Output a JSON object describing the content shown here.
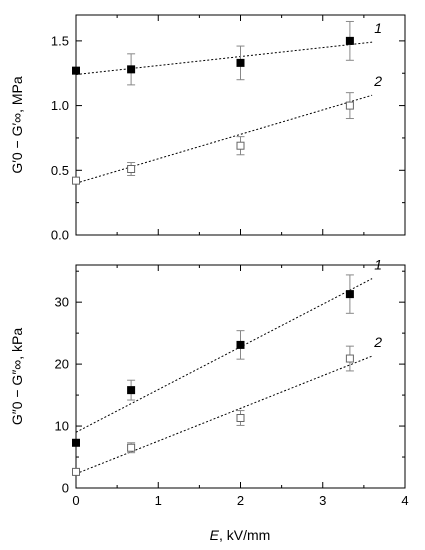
{
  "chart_data": [
    {
      "type": "scatter",
      "panel": "top",
      "xlim": [
        0,
        4
      ],
      "ylim": [
        0,
        1.7
      ],
      "xticks": [
        "0",
        "1",
        "2",
        "3",
        "4"
      ],
      "yticks": [
        "0.0",
        "0.5",
        "1.0",
        "1.5"
      ],
      "ytick_values": [
        0,
        0.5,
        1.0,
        1.5
      ],
      "ylabel": "G′0 − G′∞, MPa",
      "series": [
        {
          "name": "1",
          "marker": "filled-square",
          "points": [
            {
              "x": 0,
              "y": 1.27,
              "err": 0
            },
            {
              "x": 0.67,
              "y": 1.28,
              "err": 0.12
            },
            {
              "x": 2.0,
              "y": 1.33,
              "err": 0.13
            },
            {
              "x": 3.33,
              "y": 1.5,
              "err": 0.15
            }
          ],
          "fit": {
            "x": [
              0,
              3.6
            ],
            "y": [
              1.24,
              1.49
            ]
          }
        },
        {
          "name": "2",
          "marker": "open-square",
          "points": [
            {
              "x": 0,
              "y": 0.42,
              "err": 0
            },
            {
              "x": 0.67,
              "y": 0.51,
              "err": 0.05
            },
            {
              "x": 2.0,
              "y": 0.69,
              "err": 0.07
            },
            {
              "x": 3.33,
              "y": 1.0,
              "err": 0.1
            }
          ],
          "fit": {
            "x": [
              0,
              3.6
            ],
            "y": [
              0.4,
              1.08
            ]
          }
        }
      ]
    },
    {
      "type": "scatter",
      "panel": "bottom",
      "xlim": [
        0,
        4
      ],
      "ylim": [
        0,
        36
      ],
      "xticks": [
        "0",
        "1",
        "2",
        "3",
        "4"
      ],
      "yticks": [
        "0",
        "10",
        "20",
        "30"
      ],
      "ytick_values": [
        0,
        10,
        20,
        30
      ],
      "xlabel_var": "E",
      "xlabel_unit": ", kV/mm",
      "ylabel": "G″0 − G″∞, kPa",
      "series": [
        {
          "name": "1",
          "marker": "filled-square",
          "points": [
            {
              "x": 0,
              "y": 7.3,
              "err": 0
            },
            {
              "x": 0.67,
              "y": 15.8,
              "err": 1.6
            },
            {
              "x": 2.0,
              "y": 23.1,
              "err": 2.3
            },
            {
              "x": 3.33,
              "y": 31.3,
              "err": 3.1
            }
          ],
          "fit": {
            "x": [
              0,
              3.6
            ],
            "y": [
              9.0,
              33.8
            ]
          }
        },
        {
          "name": "2",
          "marker": "open-square",
          "points": [
            {
              "x": 0,
              "y": 2.6,
              "err": 0
            },
            {
              "x": 0.67,
              "y": 6.5,
              "err": 0.8
            },
            {
              "x": 2.0,
              "y": 11.3,
              "err": 1.2
            },
            {
              "x": 3.33,
              "y": 20.9,
              "err": 2.0
            }
          ],
          "fit": {
            "x": [
              0,
              3.6
            ],
            "y": [
              2.3,
              21.3
            ]
          }
        }
      ]
    }
  ]
}
